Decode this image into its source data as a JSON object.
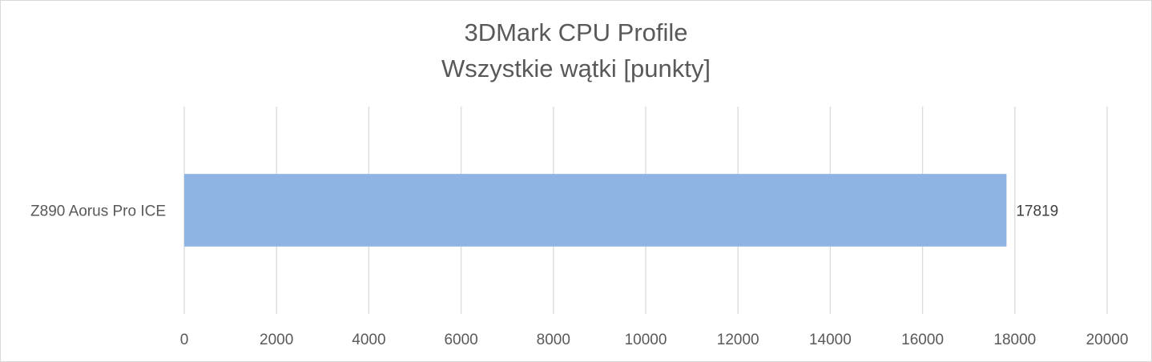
{
  "chart_data": {
    "type": "bar",
    "orientation": "horizontal",
    "title": "3DMark CPU Profile",
    "subtitle": "Wszystkie wątki [punkty]",
    "categories": [
      "Z890 Aorus Pro ICE"
    ],
    "series": [
      {
        "values": [
          17819
        ]
      }
    ],
    "data_labels": [
      "17819"
    ],
    "xlim": [
      0,
      20000
    ],
    "ticks": [
      0,
      2000,
      4000,
      6000,
      8000,
      10000,
      12000,
      14000,
      16000,
      18000,
      20000
    ],
    "grid": true,
    "legend": "none",
    "colors": {
      "bar": "#8eb4e3",
      "grid": "#d9d9d9",
      "text": "#595959"
    }
  }
}
